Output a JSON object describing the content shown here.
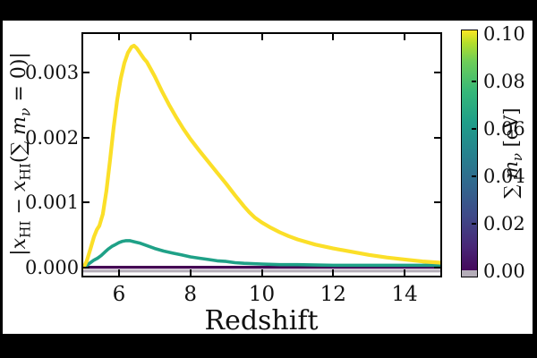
{
  "figure": {
    "xlabel": "Redshift",
    "ylabel_segments": [
      {
        "text": "|",
        "style": "roman"
      },
      {
        "text": "x",
        "style": "italic"
      },
      {
        "text": "HI",
        "style": "sub"
      },
      {
        "text": " − ",
        "style": "roman"
      },
      {
        "text": "x",
        "style": "italic"
      },
      {
        "text": "HI",
        "style": "sub"
      },
      {
        "text": "(∑ ",
        "style": "roman"
      },
      {
        "text": "m",
        "style": "italic"
      },
      {
        "text": "ν",
        "style": "subitalic"
      },
      {
        "text": " = 0)|",
        "style": "roman"
      }
    ],
    "colorbar_label_segments": [
      {
        "text": "∑ ",
        "style": "roman"
      },
      {
        "text": "m",
        "style": "italic"
      },
      {
        "text": "ν",
        "style": "subitalic"
      },
      {
        "text": " [eV]",
        "style": "roman"
      }
    ]
  },
  "chart_data": {
    "type": "line",
    "title": "",
    "xlabel": "Redshift",
    "ylabel": "|x_HI - x_HI(sum m_nu = 0)|",
    "xlim": [
      5,
      15
    ],
    "ylim": [
      -0.00013,
      0.0036
    ],
    "grid": false,
    "x_ticks": [
      6,
      8,
      10,
      12,
      14
    ],
    "x_tick_labels": [
      "6",
      "8",
      "10",
      "12",
      "14"
    ],
    "y_ticks": [
      0.0,
      0.001,
      0.002,
      0.003
    ],
    "y_tick_labels": [
      "0.000",
      "0.001",
      "0.002",
      "0.003"
    ],
    "series": [
      {
        "name": "sum-mnu-0.00-eV-fiducial-zero-line",
        "color": "#b4adb8",
        "width": 3,
        "points": [
          [
            5.0,
            -6e-05
          ],
          [
            15.0,
            -6e-05
          ]
        ]
      },
      {
        "name": "sum-mnu-0.02-eV",
        "color": "#440154",
        "width": 3.2,
        "points": [
          [
            5.0,
            0.0
          ],
          [
            15.0,
            0.0
          ]
        ]
      },
      {
        "name": "sum-mnu-0.06-eV",
        "color": "#1fa187",
        "width": 3.6,
        "points": [
          [
            5.0,
            0.0
          ],
          [
            5.1,
            3e-05
          ],
          [
            5.2,
            7e-05
          ],
          [
            5.3,
            0.00011
          ],
          [
            5.4,
            0.00014
          ],
          [
            5.5,
            0.00018
          ],
          [
            5.6,
            0.00023
          ],
          [
            5.7,
            0.00028
          ],
          [
            5.8,
            0.00032
          ],
          [
            5.9,
            0.00035
          ],
          [
            6.0,
            0.00038
          ],
          [
            6.1,
            0.0004
          ],
          [
            6.2,
            0.00041
          ],
          [
            6.3,
            0.00041
          ],
          [
            6.45,
            0.00039
          ],
          [
            6.6,
            0.00037
          ],
          [
            6.8,
            0.00033
          ],
          [
            7.0,
            0.00029
          ],
          [
            7.25,
            0.00025
          ],
          [
            7.5,
            0.00022
          ],
          [
            7.75,
            0.00019
          ],
          [
            8.0,
            0.00016
          ],
          [
            8.25,
            0.00014
          ],
          [
            8.5,
            0.00012
          ],
          [
            8.75,
            0.0001
          ],
          [
            9.0,
            9e-05
          ],
          [
            9.25,
            7e-05
          ],
          [
            9.5,
            6e-05
          ],
          [
            10.0,
            5e-05
          ],
          [
            10.5,
            4e-05
          ],
          [
            11.0,
            4e-05
          ],
          [
            12.0,
            3e-05
          ],
          [
            13.0,
            3e-05
          ],
          [
            14.0,
            3e-05
          ],
          [
            15.0,
            3e-05
          ]
        ]
      },
      {
        "name": "sum-mnu-0.10-eV",
        "color": "#fbdf28",
        "width": 4.2,
        "points": [
          [
            5.0,
            0.0
          ],
          [
            5.05,
            4e-05
          ],
          [
            5.1,
            0.0001
          ],
          [
            5.2,
            0.00028
          ],
          [
            5.3,
            0.00047
          ],
          [
            5.38,
            0.00058
          ],
          [
            5.45,
            0.00064
          ],
          [
            5.55,
            0.00082
          ],
          [
            5.65,
            0.00118
          ],
          [
            5.75,
            0.00165
          ],
          [
            5.85,
            0.00215
          ],
          [
            5.95,
            0.00258
          ],
          [
            6.05,
            0.00291
          ],
          [
            6.15,
            0.00315
          ],
          [
            6.25,
            0.00331
          ],
          [
            6.35,
            0.0034
          ],
          [
            6.42,
            0.00342
          ],
          [
            6.5,
            0.00338
          ],
          [
            6.6,
            0.0033
          ],
          [
            6.7,
            0.00322
          ],
          [
            6.78,
            0.00317
          ],
          [
            6.9,
            0.00305
          ],
          [
            7.0,
            0.00295
          ],
          [
            7.2,
            0.00272
          ],
          [
            7.4,
            0.00251
          ],
          [
            7.6,
            0.00232
          ],
          [
            7.8,
            0.00214
          ],
          [
            8.0,
            0.00198
          ],
          [
            8.25,
            0.0018
          ],
          [
            8.5,
            0.00163
          ],
          [
            8.75,
            0.00146
          ],
          [
            9.0,
            0.00129
          ],
          [
            9.25,
            0.00111
          ],
          [
            9.5,
            0.00094
          ],
          [
            9.65,
            0.00085
          ],
          [
            9.8,
            0.00077
          ],
          [
            10.0,
            0.00069
          ],
          [
            10.25,
            0.00061
          ],
          [
            10.5,
            0.00054
          ],
          [
            10.75,
            0.00048
          ],
          [
            11.0,
            0.00043
          ],
          [
            11.5,
            0.00035
          ],
          [
            12.0,
            0.00029
          ],
          [
            12.5,
            0.00024
          ],
          [
            13.0,
            0.00019
          ],
          [
            13.5,
            0.00015
          ],
          [
            14.0,
            0.00012
          ],
          [
            14.5,
            9e-05
          ],
          [
            15.0,
            7e-05
          ]
        ]
      }
    ],
    "colorbar": {
      "label": "sum m_nu [eV]",
      "cmap": "viridis",
      "orientation": "vertical",
      "position": "right",
      "range": [
        0.0,
        0.1
      ],
      "ticks": [
        0.0,
        0.02,
        0.04,
        0.06,
        0.08,
        0.1
      ],
      "tick_labels": [
        "0.00",
        "0.02",
        "0.04",
        "0.06",
        "0.08",
        "0.10"
      ],
      "top_color": "#fde725",
      "bottom_color": "#440154",
      "under_color": "#b4adb8"
    },
    "legend": null
  },
  "frame": {
    "background_color": "#000000",
    "plot_background_color": "#ffffff"
  }
}
